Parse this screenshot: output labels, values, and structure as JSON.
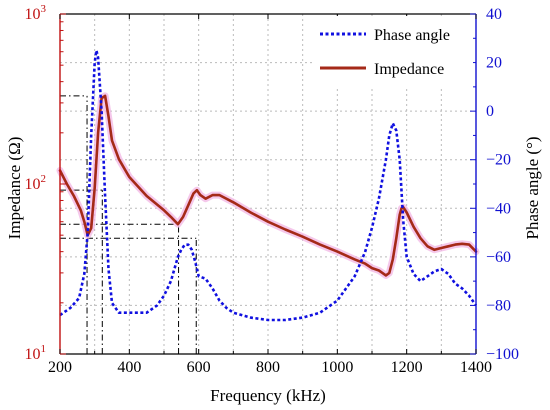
{
  "chart_data": {
    "type": "line",
    "xlabel": "Frequency (kHz)",
    "ylabel_left": "Impedance (Ω)",
    "ylabel_right": "Phase angle (°)",
    "xlim": [
      200,
      1400
    ],
    "x_ticks": [
      200,
      400,
      600,
      800,
      1000,
      1200,
      1400
    ],
    "ylim_left": [
      10,
      1000
    ],
    "y_left_scale": "log",
    "y_left_ticks": [
      {
        "value": 10,
        "base": "10",
        "exp": "1"
      },
      {
        "value": 100,
        "base": "10",
        "exp": "2"
      },
      {
        "value": 1000,
        "base": "10",
        "exp": "3"
      }
    ],
    "ylim_right": [
      -100,
      40
    ],
    "y_right_ticks": [
      -100,
      -80,
      -60,
      -40,
      -20,
      0,
      20,
      40
    ],
    "grid": true,
    "legend_position": "top-right",
    "colors": {
      "impedance": "#a52a18",
      "impedance_glow": "#f2b5e4",
      "phase": "#1010e0",
      "left_axis": "#c01010",
      "right_axis": "#1010d0",
      "grid": "#bbbbbb"
    },
    "series": [
      {
        "name": "Phase angle",
        "axis": "right",
        "style": "dotted",
        "x": [
          200,
          230,
          255,
          270,
          280,
          290,
          300,
          305,
          310,
          320,
          330,
          340,
          350,
          370,
          400,
          450,
          480,
          500,
          520,
          540,
          550,
          560,
          570,
          580,
          590,
          600,
          620,
          640,
          660,
          680,
          700,
          750,
          800,
          850,
          900,
          950,
          1000,
          1050,
          1080,
          1100,
          1120,
          1140,
          1150,
          1160,
          1170,
          1180,
          1190,
          1200,
          1220,
          1240,
          1260,
          1280,
          1300,
          1320,
          1340,
          1360,
          1380,
          1400
        ],
        "values": [
          -84,
          -81,
          -77,
          -67,
          -50,
          -10,
          20,
          25,
          22,
          0,
          -35,
          -65,
          -79,
          -83,
          -83,
          -83,
          -80,
          -76,
          -70,
          -60,
          -57,
          -55,
          -55,
          -57,
          -62,
          -68,
          -69,
          -73,
          -78,
          -81,
          -83,
          -85,
          -86,
          -86,
          -85,
          -83,
          -78,
          -68,
          -58,
          -48,
          -36,
          -20,
          -10,
          -5,
          -8,
          -20,
          -45,
          -60,
          -67,
          -70,
          -68,
          -66,
          -65,
          -67,
          -71,
          -73,
          -76,
          -80
        ]
      },
      {
        "name": "Impedance",
        "axis": "left",
        "style": "solid",
        "x": [
          200,
          220,
          240,
          260,
          270,
          280,
          290,
          300,
          310,
          320,
          330,
          340,
          350,
          370,
          400,
          450,
          500,
          520,
          540,
          555,
          570,
          585,
          595,
          605,
          620,
          640,
          660,
          700,
          750,
          800,
          850,
          900,
          950,
          1000,
          1050,
          1080,
          1100,
          1120,
          1130,
          1140,
          1150,
          1160,
          1170,
          1180,
          1185,
          1190,
          1200,
          1220,
          1240,
          1260,
          1280,
          1300,
          1320,
          1340,
          1360,
          1380,
          1400
        ],
        "values": [
          120,
          100,
          85,
          70,
          60,
          50,
          55,
          95,
          200,
          320,
          330,
          250,
          180,
          140,
          110,
          85,
          70,
          64,
          58,
          64,
          75,
          88,
          92,
          86,
          82,
          86,
          86,
          78,
          68,
          60,
          54,
          49,
          44,
          40,
          36,
          34,
          32,
          31,
          30,
          29,
          30,
          36,
          48,
          66,
          72,
          73,
          68,
          56,
          48,
          43,
          41,
          42,
          43,
          44,
          44.5,
          44,
          40
        ]
      }
    ],
    "annotations": {
      "vertical_dashed_x": [
        278,
        322,
        542,
        593
      ],
      "horizontal_dashed_y": [
        330,
        92,
        58,
        48
      ]
    }
  }
}
